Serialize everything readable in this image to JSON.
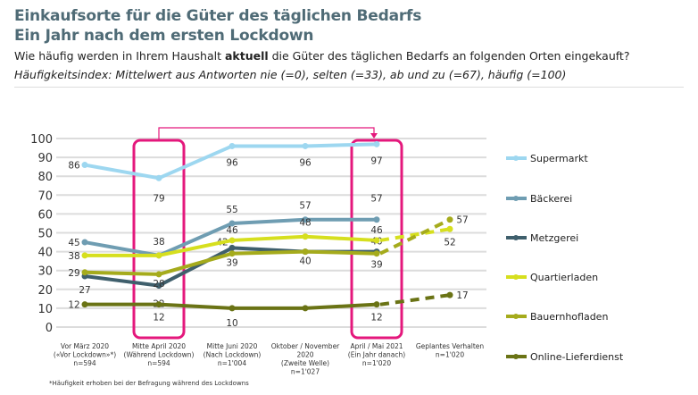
{
  "header": {
    "title_line1": "Einkaufsorte für die Güter des täglichen Bedarfs",
    "title_line2": "Ein Jahr nach dem ersten Lockdown",
    "question_before": "Wie häufig werden in Ihrem Haushalt ",
    "question_bold": "aktuell",
    "question_after": " die Güter des täglichen Bedarfs an folgenden Orten eingekauft?",
    "index_note": "Häufigkeitsindex: Mittelwert aus Antworten nie (=0), selten (=33), ab und zu (=67), häufig (=100)"
  },
  "chart_data": {
    "type": "line",
    "ylim": [
      0,
      100
    ],
    "yticks": [
      0,
      10,
      20,
      30,
      40,
      50,
      60,
      70,
      80,
      90,
      100
    ],
    "grid": true,
    "legend_placement": "right",
    "categories": [
      [
        "Vor März 2020",
        "(«Vor Lockdown»*)",
        "n=594"
      ],
      [
        "Mitte April 2020",
        "(Während Lockdown)",
        "n=594"
      ],
      [
        "Mitte Juni 2020",
        "(Nach Lockdown)",
        "n=1'004"
      ],
      [
        "Oktober / November",
        "2020",
        "(Zweite Welle)",
        "n=1'027"
      ],
      [
        "April / Mai 2021",
        "(Ein Jahr danach)",
        "n=1'020"
      ],
      [
        "Geplantes Verhalten",
        "n=1'020"
      ]
    ],
    "highlighted_categories": [
      1,
      4
    ],
    "series": [
      {
        "name": "Supermarkt",
        "color": "#9dd7f0",
        "values": [
          86,
          79,
          96,
          96,
          97,
          null
        ]
      },
      {
        "name": "Bäckerei",
        "color": "#6f9db2",
        "values": [
          45,
          38,
          55,
          57,
          57,
          null
        ]
      },
      {
        "name": "Metzgerei",
        "color": "#3f5f6c",
        "values": [
          27,
          22,
          42,
          40,
          40,
          null
        ]
      },
      {
        "name": "Quartierladen",
        "color": "#d6df1e",
        "values": [
          38,
          38,
          46,
          48,
          46,
          52
        ]
      },
      {
        "name": "Bauernhofladen",
        "color": "#a5ab1c",
        "values": [
          29,
          28,
          39,
          40,
          39,
          57
        ]
      },
      {
        "name": "Online-Lieferdienst",
        "color": "#6a7315",
        "values": [
          12,
          12,
          10,
          10,
          12,
          17
        ]
      }
    ],
    "planned_style": "dashed",
    "highlight_color": "#e4187c",
    "footnote": "*Häufigkeit erhoben bei der Befragung während des Lockdowns"
  }
}
